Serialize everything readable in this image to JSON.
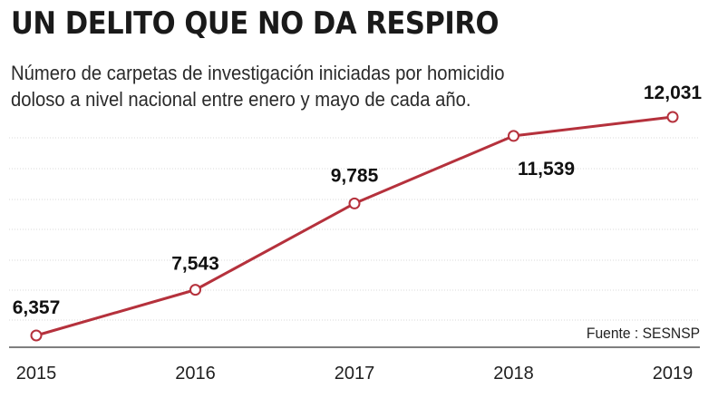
{
  "header": {
    "title": "UN DELITO QUE NO DA RESPIRO",
    "subtitle": "Número de carpetas de investigación iniciadas por homicidio doloso a nivel nacional entre enero y mayo de cada año."
  },
  "source": "Fuente : SESNSP",
  "colors": {
    "line": "#b5313c",
    "grid": "#d8d8d8",
    "axis": "#333333"
  },
  "chart_data": {
    "type": "line",
    "title": "UN DELITO QUE NO DA RESPIRO",
    "subtitle": "Número de carpetas de investigación iniciadas por homicidio doloso a nivel nacional entre enero y mayo de cada año.",
    "xlabel": "",
    "ylabel": "",
    "categories": [
      "2015",
      "2016",
      "2017",
      "2018",
      "2019"
    ],
    "values": [
      6357,
      7543,
      9785,
      11539,
      12031
    ],
    "data_labels": [
      "6,357",
      "7,543",
      "9,785",
      "11,539",
      "12,031"
    ],
    "ylim": [
      6000,
      12500
    ],
    "grid": true,
    "legend": "none"
  }
}
